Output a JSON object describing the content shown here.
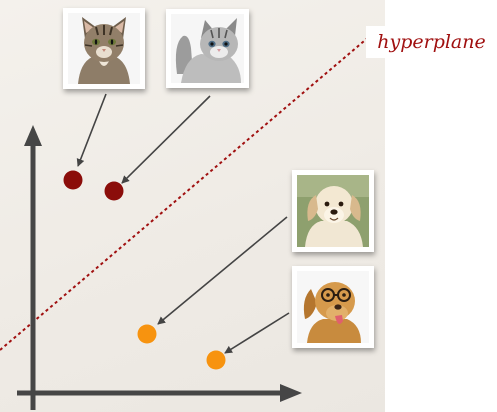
{
  "label": {
    "text": "hyperplane",
    "color": "#a01010"
  },
  "colors": {
    "cat_point": "#8b0d0a",
    "dog_point": "#f7930f",
    "axis": "#464646",
    "boundary": "#a01010",
    "pointer": "#444444"
  },
  "classes": [
    {
      "name": "cat",
      "icon": "cat-photo",
      "points": 2
    },
    {
      "name": "dog",
      "icon": "dog-photo",
      "points": 2
    }
  ]
}
